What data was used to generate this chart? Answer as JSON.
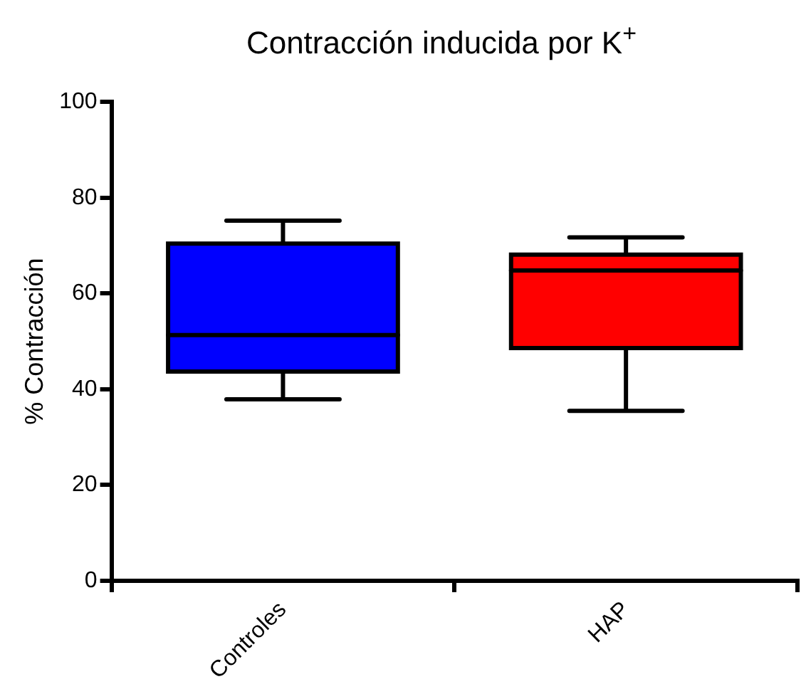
{
  "chart_data": {
    "type": "box",
    "title": "Contracción inducida por  K$^{+}$",
    "ylabel": "% Contracción",
    "categories": [
      "Controles",
      "HAP"
    ],
    "colors": [
      "#0000ff",
      "#ff0000"
    ],
    "boxes": [
      {
        "low": 37.9,
        "q1": 43.7,
        "median": 51.3,
        "q3": 70.4,
        "high": 75.2
      },
      {
        "low": 35.5,
        "q1": 48.6,
        "median": 64.8,
        "q3": 68.1,
        "high": 71.7
      }
    ],
    "ylim": [
      0,
      100
    ],
    "yticks": [
      0,
      20,
      40,
      60,
      80,
      100
    ],
    "grid": false,
    "legend": false
  }
}
